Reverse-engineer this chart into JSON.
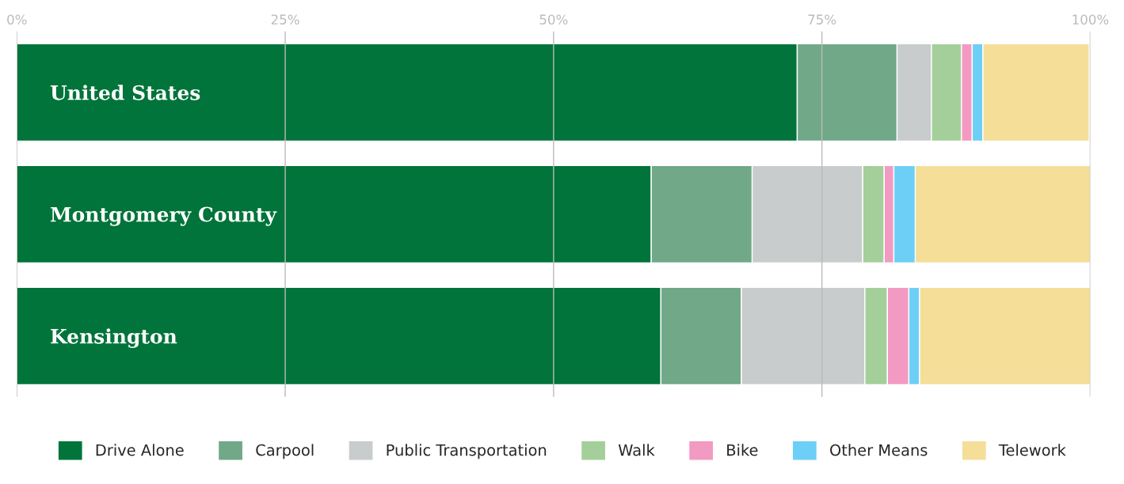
{
  "chart_data": {
    "type": "bar",
    "orientation": "horizontal",
    "stacked": true,
    "categories": [
      "United States",
      "Montgomery County",
      "Kensington"
    ],
    "series": [
      {
        "name": "Drive Alone",
        "color": "#00743a",
        "values": [
          72.7,
          59.1,
          60.0
        ]
      },
      {
        "name": "Carpool",
        "color": "#70a888",
        "values": [
          9.3,
          9.4,
          7.5
        ]
      },
      {
        "name": "Public Transportation",
        "color": "#c8cccc",
        "values": [
          3.2,
          10.3,
          11.5
        ]
      },
      {
        "name": "Walk",
        "color": "#a4cf9a",
        "values": [
          2.8,
          2.0,
          2.1
        ]
      },
      {
        "name": "Bike",
        "color": "#f29ac2",
        "values": [
          1.0,
          0.9,
          2.0
        ]
      },
      {
        "name": "Other Means",
        "color": "#6dcff6",
        "values": [
          1.0,
          2.0,
          1.0
        ]
      },
      {
        "name": "Telework",
        "color": "#f4de98",
        "values": [
          9.9,
          16.3,
          15.9
        ]
      }
    ],
    "xlim": [
      0,
      100
    ],
    "xticks": [
      {
        "value": 0,
        "label": "0%"
      },
      {
        "value": 25,
        "label": "25%"
      },
      {
        "value": 50,
        "label": "50%"
      },
      {
        "value": 75,
        "label": "75%"
      },
      {
        "value": 100,
        "label": "100%"
      }
    ],
    "grid": "x",
    "legend": "bottom"
  }
}
